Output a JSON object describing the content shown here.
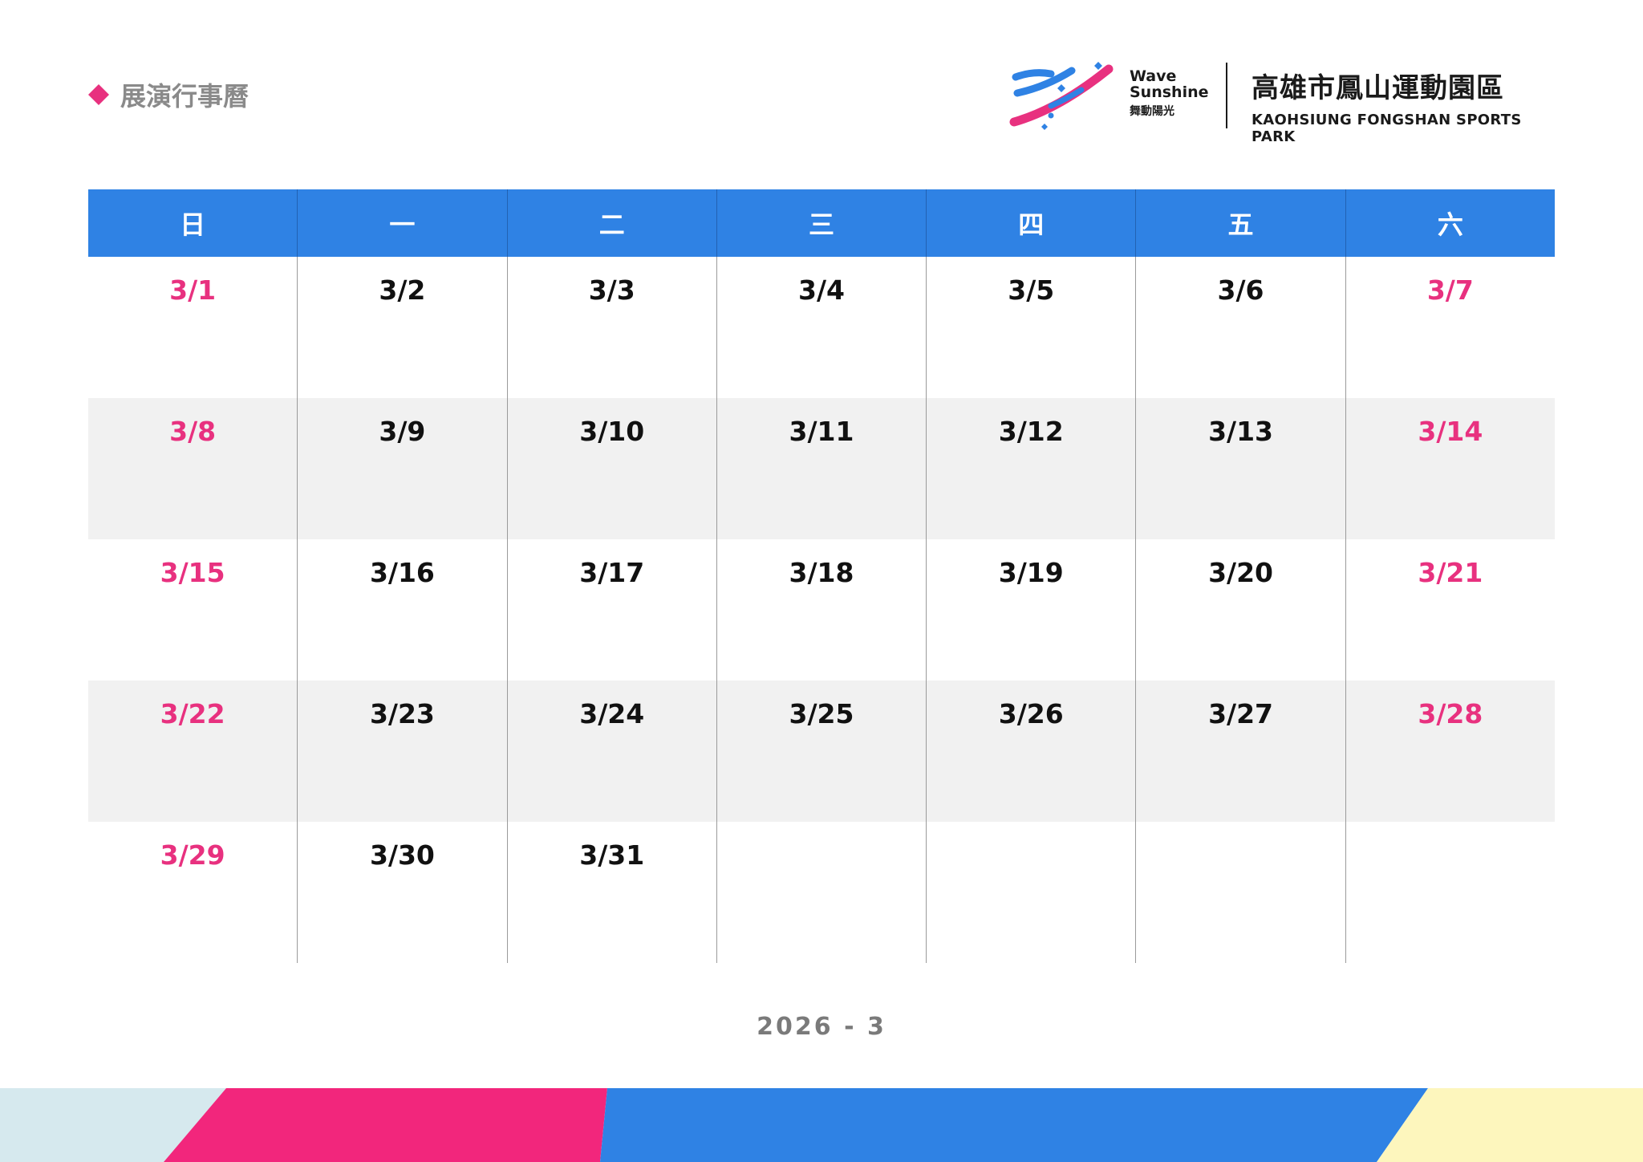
{
  "header": {
    "title": "展演行事曆",
    "icon": "diamond-icon",
    "accent_color": "#e8317f"
  },
  "logo": {
    "wave_line1": "Wave",
    "wave_line2": "Sunshine",
    "wave_line3": "舞動陽光",
    "park_name_zh": "高雄市鳳山運動園區",
    "park_name_en": "KAOHSIUNG FONGSHAN SPORTS PARK"
  },
  "calendar": {
    "header_color": "#2f82e4",
    "weekend_color": "#e8317f",
    "weekdays": [
      "日",
      "一",
      "二",
      "三",
      "四",
      "五",
      "六"
    ],
    "weeks": [
      [
        "3/1",
        "3/2",
        "3/3",
        "3/4",
        "3/5",
        "3/6",
        "3/7"
      ],
      [
        "3/8",
        "3/9",
        "3/10",
        "3/11",
        "3/12",
        "3/13",
        "3/14"
      ],
      [
        "3/15",
        "3/16",
        "3/17",
        "3/18",
        "3/19",
        "3/20",
        "3/21"
      ],
      [
        "3/22",
        "3/23",
        "3/24",
        "3/25",
        "3/26",
        "3/27",
        "3/28"
      ],
      [
        "3/29",
        "3/30",
        "3/31",
        "",
        "",
        "",
        ""
      ]
    ]
  },
  "footer": {
    "month_label": "2026 - 3",
    "band_colors": [
      "#d6e9ee",
      "#f2267c",
      "#2f82e4",
      "#fdf6bd"
    ]
  }
}
